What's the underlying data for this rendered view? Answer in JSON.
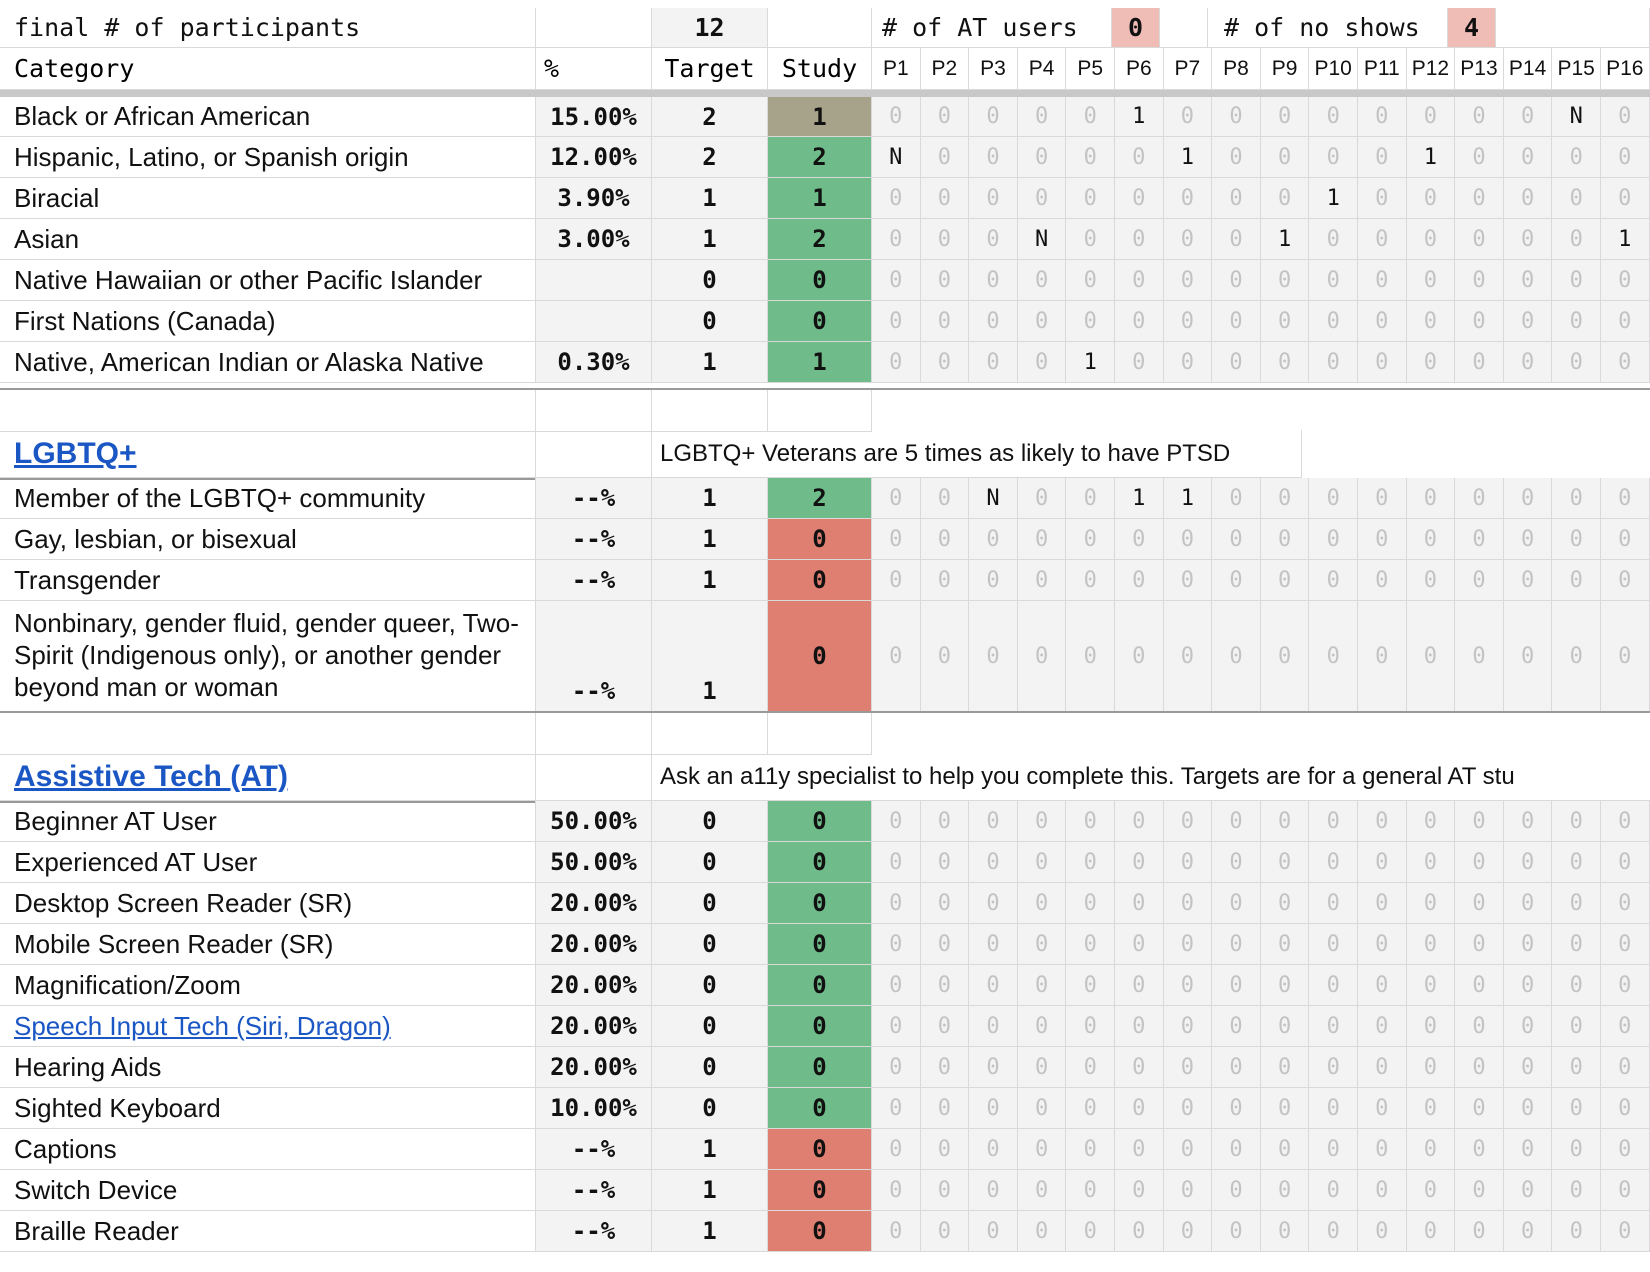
{
  "header_row": {
    "final_label": "final # of participants",
    "final_value": "12",
    "at_users_label": "# of AT users",
    "at_users_value": "0",
    "no_shows_label": "# of no shows",
    "no_shows_value": "4"
  },
  "columns": {
    "category": "Category",
    "percent": "%",
    "target": "Target",
    "study": "Study",
    "participants": [
      "P1",
      "P2",
      "P3",
      "P4",
      "P5",
      "P6",
      "P7",
      "P8",
      "P9",
      "P10",
      "P11",
      "P12",
      "P13",
      "P14",
      "P15",
      "P16"
    ]
  },
  "section1": {
    "rows": [
      {
        "label": "Black or African American",
        "pct": "15.00%",
        "target": "2",
        "study": "1",
        "study_status": "olive",
        "p": [
          "0",
          "0",
          "0",
          "0",
          "0",
          "1",
          "0",
          "0",
          "0",
          "0",
          "0",
          "0",
          "0",
          "0",
          "N",
          "0"
        ]
      },
      {
        "label": "Hispanic, Latino, or Spanish origin",
        "pct": "12.00%",
        "target": "2",
        "study": "2",
        "study_status": "green",
        "p": [
          "N",
          "0",
          "0",
          "0",
          "0",
          "0",
          "1",
          "0",
          "0",
          "0",
          "0",
          "1",
          "0",
          "0",
          "0",
          "0"
        ]
      },
      {
        "label": "Biracial",
        "pct": "3.90%",
        "target": "1",
        "study": "1",
        "study_status": "green",
        "p": [
          "0",
          "0",
          "0",
          "0",
          "0",
          "0",
          "0",
          "0",
          "0",
          "1",
          "0",
          "0",
          "0",
          "0",
          "0",
          "0"
        ]
      },
      {
        "label": "Asian",
        "pct": "3.00%",
        "target": "1",
        "study": "2",
        "study_status": "green",
        "p": [
          "0",
          "0",
          "0",
          "N",
          "0",
          "0",
          "0",
          "0",
          "1",
          "0",
          "0",
          "0",
          "0",
          "0",
          "0",
          "1"
        ]
      },
      {
        "label": "Native Hawaiian or other Pacific Islander",
        "pct": "",
        "target": "0",
        "study": "0",
        "study_status": "green",
        "p": [
          "0",
          "0",
          "0",
          "0",
          "0",
          "0",
          "0",
          "0",
          "0",
          "0",
          "0",
          "0",
          "0",
          "0",
          "0",
          "0"
        ]
      },
      {
        "label": "First Nations (Canada)",
        "pct": "",
        "target": "0",
        "study": "0",
        "study_status": "green",
        "p": [
          "0",
          "0",
          "0",
          "0",
          "0",
          "0",
          "0",
          "0",
          "0",
          "0",
          "0",
          "0",
          "0",
          "0",
          "0",
          "0"
        ]
      },
      {
        "label": "Native, American Indian or Alaska Native",
        "pct": "0.30%",
        "target": "1",
        "study": "1",
        "study_status": "green",
        "p": [
          "0",
          "0",
          "0",
          "0",
          "1",
          "0",
          "0",
          "0",
          "0",
          "0",
          "0",
          "0",
          "0",
          "0",
          "0",
          "0"
        ]
      }
    ]
  },
  "section2": {
    "title": "LGBTQ+",
    "note": "LGBTQ+ Veterans are 5 times as likely to have PTSD",
    "rows": [
      {
        "label": "Member of the LGBTQ+ community",
        "pct": "--%",
        "target": "1",
        "study": "2",
        "study_status": "green",
        "p": [
          "0",
          "0",
          "N",
          "0",
          "0",
          "1",
          "1",
          "0",
          "0",
          "0",
          "0",
          "0",
          "0",
          "0",
          "0",
          "0"
        ]
      },
      {
        "label": "Gay, lesbian, or bisexual",
        "pct": "--%",
        "target": "1",
        "study": "0",
        "study_status": "red",
        "p": [
          "0",
          "0",
          "0",
          "0",
          "0",
          "0",
          "0",
          "0",
          "0",
          "0",
          "0",
          "0",
          "0",
          "0",
          "0",
          "0"
        ]
      },
      {
        "label": "Transgender",
        "pct": "--%",
        "target": "1",
        "study": "0",
        "study_status": "red",
        "p": [
          "0",
          "0",
          "0",
          "0",
          "0",
          "0",
          "0",
          "0",
          "0",
          "0",
          "0",
          "0",
          "0",
          "0",
          "0",
          "0"
        ]
      },
      {
        "label": "Nonbinary, gender fluid, gender queer, Two-Spirit (Indigenous only), or another gender beyond man or woman",
        "pct": "--%",
        "target": "1",
        "study": "0",
        "study_status": "red",
        "p": [
          "0",
          "0",
          "0",
          "0",
          "0",
          "0",
          "0",
          "0",
          "0",
          "0",
          "0",
          "0",
          "0",
          "0",
          "0",
          "0"
        ]
      }
    ]
  },
  "section3": {
    "title": "Assistive Tech (AT)",
    "note": "Ask an a11y specialist to help you complete this. Targets are for a general AT stu",
    "rows": [
      {
        "label": "Beginner AT User",
        "pct": "50.00%",
        "target": "0",
        "study": "0",
        "study_status": "green",
        "p": [
          "0",
          "0",
          "0",
          "0",
          "0",
          "0",
          "0",
          "0",
          "0",
          "0",
          "0",
          "0",
          "0",
          "0",
          "0",
          "0"
        ]
      },
      {
        "label": "Experienced AT User",
        "pct": "50.00%",
        "target": "0",
        "study": "0",
        "study_status": "green",
        "p": [
          "0",
          "0",
          "0",
          "0",
          "0",
          "0",
          "0",
          "0",
          "0",
          "0",
          "0",
          "0",
          "0",
          "0",
          "0",
          "0"
        ]
      },
      {
        "label": "Desktop Screen Reader (SR)",
        "pct": "20.00%",
        "target": "0",
        "study": "0",
        "study_status": "green",
        "p": [
          "0",
          "0",
          "0",
          "0",
          "0",
          "0",
          "0",
          "0",
          "0",
          "0",
          "0",
          "0",
          "0",
          "0",
          "0",
          "0"
        ]
      },
      {
        "label": "Mobile Screen Reader (SR)",
        "pct": "20.00%",
        "target": "0",
        "study": "0",
        "study_status": "green",
        "p": [
          "0",
          "0",
          "0",
          "0",
          "0",
          "0",
          "0",
          "0",
          "0",
          "0",
          "0",
          "0",
          "0",
          "0",
          "0",
          "0"
        ]
      },
      {
        "label": "Magnification/Zoom",
        "pct": "20.00%",
        "target": "0",
        "study": "0",
        "study_status": "green",
        "p": [
          "0",
          "0",
          "0",
          "0",
          "0",
          "0",
          "0",
          "0",
          "0",
          "0",
          "0",
          "0",
          "0",
          "0",
          "0",
          "0"
        ]
      },
      {
        "label": "Speech Input Tech (Siri, Dragon)",
        "link": true,
        "pct": "20.00%",
        "target": "0",
        "study": "0",
        "study_status": "green",
        "p": [
          "0",
          "0",
          "0",
          "0",
          "0",
          "0",
          "0",
          "0",
          "0",
          "0",
          "0",
          "0",
          "0",
          "0",
          "0",
          "0"
        ]
      },
      {
        "label": "Hearing Aids",
        "pct": "20.00%",
        "target": "0",
        "study": "0",
        "study_status": "green",
        "p": [
          "0",
          "0",
          "0",
          "0",
          "0",
          "0",
          "0",
          "0",
          "0",
          "0",
          "0",
          "0",
          "0",
          "0",
          "0",
          "0"
        ]
      },
      {
        "label": "Sighted Keyboard",
        "pct": "10.00%",
        "target": "0",
        "study": "0",
        "study_status": "green",
        "p": [
          "0",
          "0",
          "0",
          "0",
          "0",
          "0",
          "0",
          "0",
          "0",
          "0",
          "0",
          "0",
          "0",
          "0",
          "0",
          "0"
        ]
      },
      {
        "label": "Captions",
        "pct": "--%",
        "target": "1",
        "study": "0",
        "study_status": "red",
        "p": [
          "0",
          "0",
          "0",
          "0",
          "0",
          "0",
          "0",
          "0",
          "0",
          "0",
          "0",
          "0",
          "0",
          "0",
          "0",
          "0"
        ]
      },
      {
        "label": "Switch Device",
        "pct": "--%",
        "target": "1",
        "study": "0",
        "study_status": "red",
        "p": [
          "0",
          "0",
          "0",
          "0",
          "0",
          "0",
          "0",
          "0",
          "0",
          "0",
          "0",
          "0",
          "0",
          "0",
          "0",
          "0"
        ]
      },
      {
        "label": "Braille Reader",
        "pct": "--%",
        "target": "1",
        "study": "0",
        "study_status": "red",
        "p": [
          "0",
          "0",
          "0",
          "0",
          "0",
          "0",
          "0",
          "0",
          "0",
          "0",
          "0",
          "0",
          "0",
          "0",
          "0",
          "0"
        ]
      }
    ]
  }
}
